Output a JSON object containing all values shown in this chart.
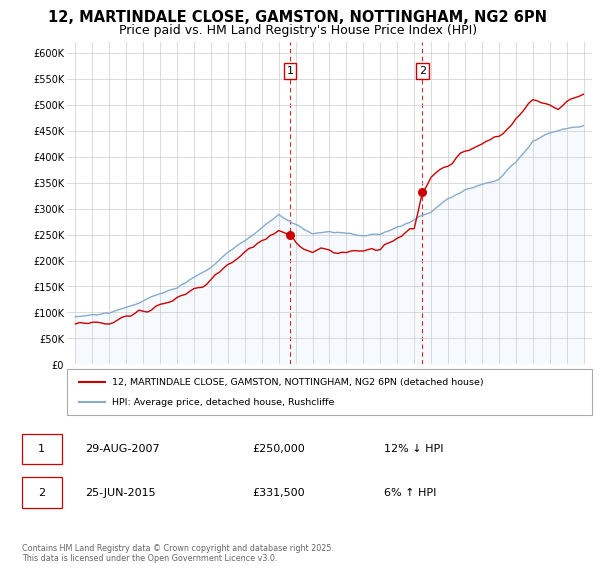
{
  "title": "12, MARTINDALE CLOSE, GAMSTON, NOTTINGHAM, NG2 6PN",
  "subtitle": "Price paid vs. HM Land Registry's House Price Index (HPI)",
  "title_fontsize": 10.5,
  "subtitle_fontsize": 9,
  "background_color": "#ffffff",
  "plot_bg_color": "#ffffff",
  "grid_color": "#cccccc",
  "line1_color": "#cc0000",
  "line2_color": "#88aacc",
  "line2_fill_color": "#ddeeff",
  "sale1_x": 2007.66,
  "sale1_y": 250000,
  "sale1_label": "1",
  "sale2_x": 2015.48,
  "sale2_y": 331500,
  "sale2_label": "2",
  "vline_color": "#cc0000",
  "marker_color": "#cc0000",
  "legend1": "12, MARTINDALE CLOSE, GAMSTON, NOTTINGHAM, NG2 6PN (detached house)",
  "legend2": "HPI: Average price, detached house, Rushcliffe",
  "table_row1_num": "1",
  "table_row1_date": "29-AUG-2007",
  "table_row1_price": "£250,000",
  "table_row1_hpi": "12% ↓ HPI",
  "table_row2_num": "2",
  "table_row2_date": "25-JUN-2015",
  "table_row2_price": "£331,500",
  "table_row2_hpi": "6% ↑ HPI",
  "footer": "Contains HM Land Registry data © Crown copyright and database right 2025.\nThis data is licensed under the Open Government Licence v3.0.",
  "ylim": [
    0,
    620000
  ],
  "xlim_start": 1994.5,
  "xlim_end": 2025.5,
  "yticks": [
    0,
    50000,
    100000,
    150000,
    200000,
    250000,
    300000,
    350000,
    400000,
    450000,
    500000,
    550000,
    600000
  ],
  "ytick_labels": [
    "£0",
    "£50K",
    "£100K",
    "£150K",
    "£200K",
    "£250K",
    "£300K",
    "£350K",
    "£400K",
    "£450K",
    "£500K",
    "£550K",
    "£600K"
  ],
  "xticks": [
    1995,
    1996,
    1997,
    1998,
    1999,
    2000,
    2001,
    2002,
    2003,
    2004,
    2005,
    2006,
    2007,
    2008,
    2009,
    2010,
    2011,
    2012,
    2013,
    2014,
    2015,
    2016,
    2017,
    2018,
    2019,
    2020,
    2021,
    2022,
    2023,
    2024,
    2025
  ]
}
